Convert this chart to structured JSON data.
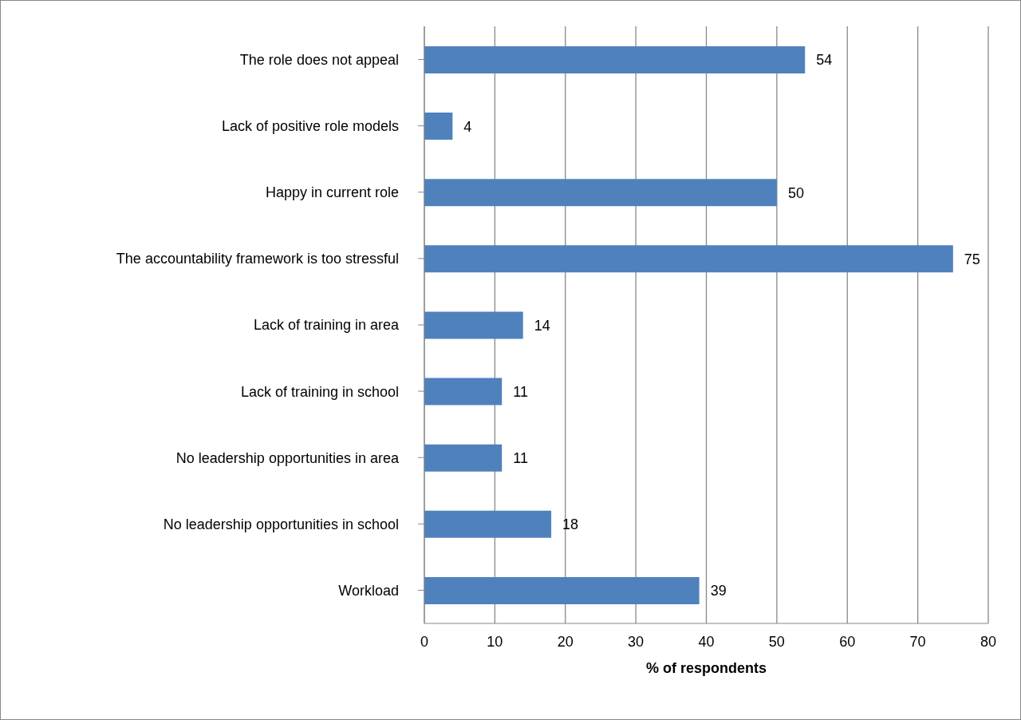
{
  "chart_data": {
    "type": "bar",
    "orientation": "horizontal",
    "xlabel": "% of respondents",
    "categories": [
      "The role does not appeal",
      "Lack of positive role models",
      "Happy in current role",
      "The accountability framework is too stressful",
      "Lack of training in area",
      "Lack of training in school",
      "No leadership opportunities in area",
      "No leadership opportunities in school",
      "Workload"
    ],
    "values": [
      54,
      4,
      50,
      75,
      14,
      11,
      11,
      18,
      39
    ],
    "color": "#4f81bd",
    "xlim": [
      0,
      80
    ],
    "xticks": [
      0,
      10,
      20,
      30,
      40,
      50,
      60,
      70,
      80
    ],
    "grid": "x",
    "data_labels": true,
    "legend": false
  }
}
